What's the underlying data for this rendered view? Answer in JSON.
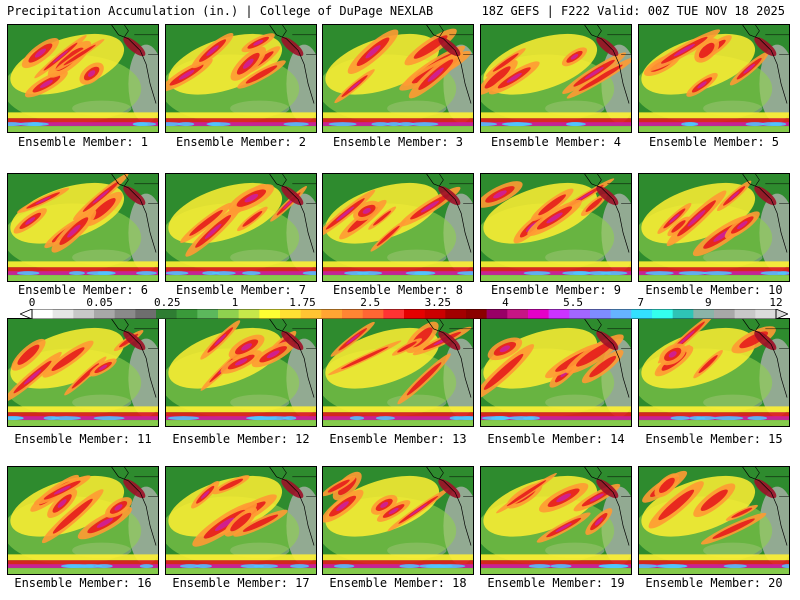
{
  "header": {
    "left_title": "Precipitation Accumulation (in.) | College of DuPage NEXLAB",
    "right_title": "18Z GEFS | F222 Valid: 00Z TUE NOV 18 2025"
  },
  "members": [
    {
      "caption": "Ensemble Member: 1"
    },
    {
      "caption": "Ensemble Member: 2"
    },
    {
      "caption": "Ensemble Member: 3"
    },
    {
      "caption": "Ensemble Member: 4"
    },
    {
      "caption": "Ensemble Member: 5"
    },
    {
      "caption": "Ensemble Member: 6"
    },
    {
      "caption": "Ensemble Member: 7"
    },
    {
      "caption": "Ensemble Member: 8"
    },
    {
      "caption": "Ensemble Member: 9"
    },
    {
      "caption": "Ensemble Member: 10"
    },
    {
      "caption": "Ensemble Member: 11"
    },
    {
      "caption": "Ensemble Member: 12"
    },
    {
      "caption": "Ensemble Member: 13"
    },
    {
      "caption": "Ensemble Member: 14"
    },
    {
      "caption": "Ensemble Member: 15"
    },
    {
      "caption": "Ensemble Member: 16"
    },
    {
      "caption": "Ensemble Member: 17"
    },
    {
      "caption": "Ensemble Member: 18"
    },
    {
      "caption": "Ensemble Member: 19"
    },
    {
      "caption": "Ensemble Member: 20"
    }
  ],
  "colorbar": {
    "labels": [
      "0",
      "0.05",
      "0.25",
      "1",
      "1.75",
      "2.5",
      "3.25",
      "4",
      "5.5",
      "7",
      "9",
      "12"
    ],
    "colors": [
      "#ffffff",
      "#e6e6e6",
      "#c8c8c8",
      "#a8a8a8",
      "#8a8a8a",
      "#6e6e6e",
      "#2e7d32",
      "#3a9a3a",
      "#5cb85c",
      "#8fd14f",
      "#c6e84a",
      "#ffff33",
      "#ffe033",
      "#ffc433",
      "#ffa533",
      "#ff8533",
      "#ff6633",
      "#ff3333",
      "#e60000",
      "#cc0000",
      "#a30000",
      "#8b0000",
      "#990066",
      "#c71585",
      "#e600c8",
      "#cc33ff",
      "#a366ff",
      "#7f8cff",
      "#66b3ff",
      "#33e0ff",
      "#33ffee",
      "#2ec4b6",
      "#8ab4a8",
      "#a8a8a8",
      "#c8c8c8",
      "#dcdcdc"
    ]
  },
  "map_colors": {
    "land": "#2e8b2e",
    "light_green": "#8fd14f",
    "yellow": "#ffef33",
    "orange": "#ff9a33",
    "red": "#e61c1c",
    "dark_red": "#9e0f28",
    "magenta": "#cc1fa0",
    "purple": "#a05ee6",
    "gray": "#b4b4b4",
    "cyan": "#4fc8ff"
  }
}
